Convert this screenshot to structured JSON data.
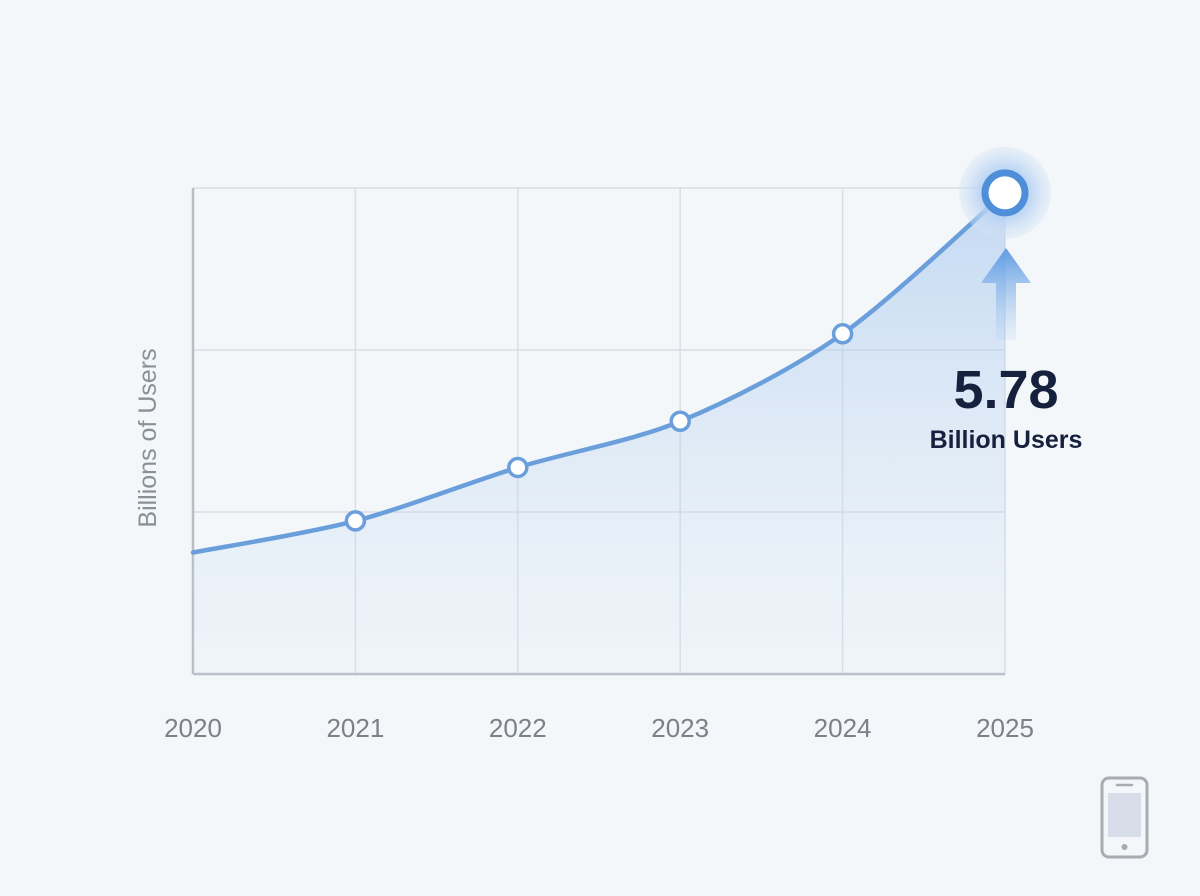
{
  "chart_data": {
    "type": "line",
    "title": "",
    "xlabel": "",
    "ylabel": "Billions of Users",
    "x": [
      "2020",
      "2021",
      "2022",
      "2023",
      "2024",
      "2025"
    ],
    "xlim": [
      2020,
      2025
    ],
    "ylim": [
      3.8,
      5.8
    ],
    "grid": true,
    "series": [
      {
        "values": [
          4.3,
          4.43,
          4.65,
          4.84,
          5.2,
          5.78
        ],
        "color": "#6a9fdc"
      }
    ],
    "annotation": {
      "value": "5.78",
      "unit": "Billion Users",
      "target_index": 5
    }
  },
  "colors": {
    "line": "#6a9fdc",
    "grid": "#d9dee4",
    "axis": "#b9bec5",
    "text_dark": "#16213e",
    "text_muted": "#7c8189",
    "highlight": "#4f8ed8"
  },
  "icons": {
    "corner": "mobile-phone-icon",
    "arrow": "up-arrow-icon"
  }
}
